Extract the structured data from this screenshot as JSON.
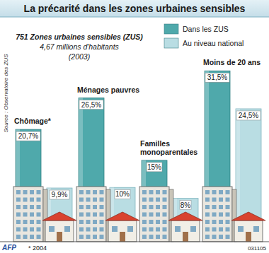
{
  "chart_data": {
    "type": "bar",
    "title": "La précarité dans les zones urbaines sensibles",
    "subtitle": [
      "751 Zones urbaines sensibles (ZUS)",
      "4,67 millions d'habitants",
      "(2003)"
    ],
    "source": "Source : Observatoire des ZUS",
    "annotations": [
      "* 2004",
      "AFP",
      "031105"
    ],
    "categories": [
      "Chômage*",
      "Ménages pauvres",
      "Familles monoparentales",
      "Moins de 20 ans"
    ],
    "series": [
      {
        "name": "Dans les ZUS",
        "color": "#4fa9ab",
        "values": [
          20.7,
          26.5,
          15,
          31.5
        ],
        "value_labels": [
          "20,7%",
          "26,5%",
          "15%",
          "31,5%"
        ]
      },
      {
        "name": "Au niveau national",
        "color": "#b9dde3",
        "values": [
          9.9,
          10,
          8,
          24.5
        ],
        "value_labels": [
          "9,9%",
          "10%",
          "8%",
          "24,5%"
        ]
      }
    ],
    "ylim": [
      0,
      40
    ],
    "data_labels": true,
    "tick_labels": false,
    "legend": "top-right",
    "grid": false
  }
}
